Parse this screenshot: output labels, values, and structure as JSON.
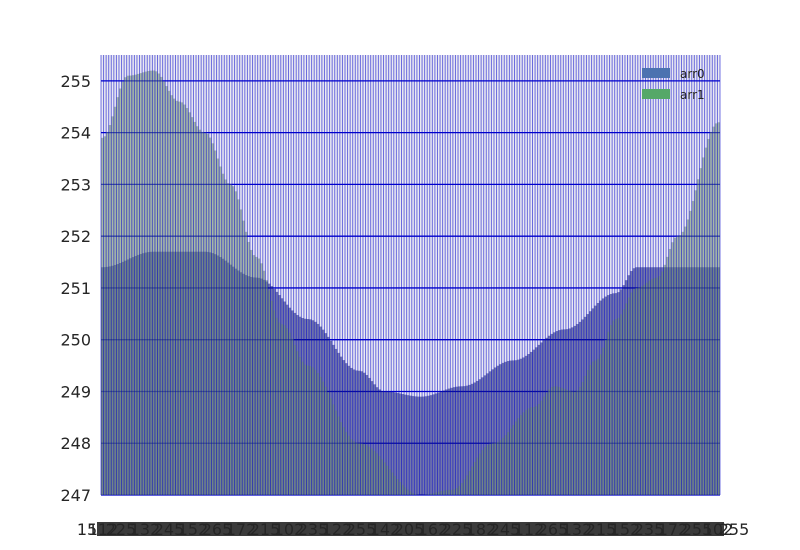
{
  "chart_data": {
    "type": "bar",
    "title": "",
    "xlabel": "",
    "ylabel": "",
    "ylim": [
      247,
      255.5
    ],
    "yticks": [
      247,
      248,
      249,
      250,
      251,
      252,
      253,
      254,
      255
    ],
    "x_tick_first": "15",
    "x_tick_last": "255",
    "grid": true,
    "legend_position": "top-right",
    "bar_count": 241,
    "series": [
      {
        "name": "arr0",
        "color": "#4c72b0",
        "anchors": [
          [
            0,
            251.4
          ],
          [
            0.1,
            251.7
          ],
          [
            0.2,
            251.7
          ],
          [
            0.3,
            251.2
          ],
          [
            0.4,
            250.4
          ],
          [
            0.5,
            249.4
          ],
          [
            0.55,
            249.0
          ],
          [
            0.62,
            248.9
          ],
          [
            0.7,
            249.1
          ],
          [
            0.8,
            249.6
          ],
          [
            0.9,
            250.2
          ],
          [
            1.0,
            250.9
          ],
          [
            1.04,
            251.4
          ]
        ]
      },
      {
        "name": "arr1",
        "color": "#55a868",
        "anchors": [
          [
            0,
            253.9
          ],
          [
            0.05,
            255.1
          ],
          [
            0.1,
            255.2
          ],
          [
            0.15,
            254.6
          ],
          [
            0.2,
            254.0
          ],
          [
            0.25,
            253.0
          ],
          [
            0.3,
            251.6
          ],
          [
            0.35,
            250.3
          ],
          [
            0.4,
            249.5
          ],
          [
            0.5,
            248.0
          ],
          [
            0.62,
            247.0
          ],
          [
            0.68,
            247.1
          ],
          [
            0.76,
            248.0
          ],
          [
            0.84,
            248.7
          ],
          [
            0.88,
            249.1
          ],
          [
            0.92,
            249.0
          ],
          [
            0.96,
            249.6
          ],
          [
            1.0,
            250.4
          ],
          [
            1.04,
            251.0
          ],
          [
            1.08,
            251.2
          ],
          [
            1.12,
            252.0
          ],
          [
            1.2,
            254.2
          ]
        ]
      }
    ]
  }
}
